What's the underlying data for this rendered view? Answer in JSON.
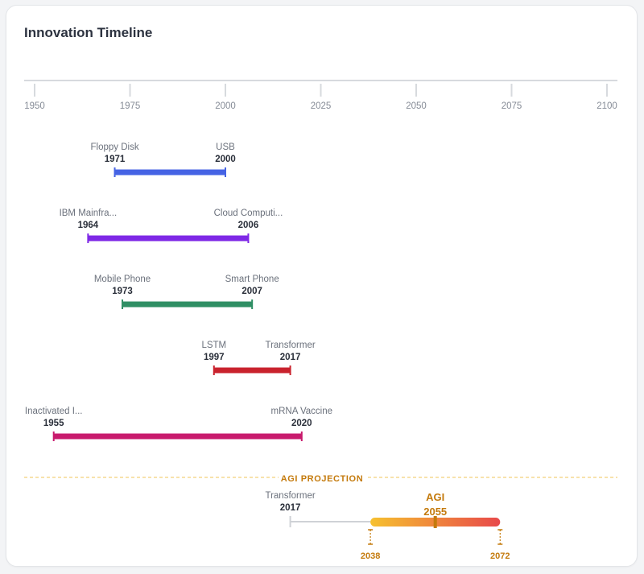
{
  "title": "Innovation Timeline",
  "chart_data": {
    "type": "timeline",
    "title": "Innovation Timeline",
    "xlim": [
      1950,
      2100
    ],
    "ticks": [
      1950,
      1975,
      2000,
      2025,
      2050,
      2075,
      2100
    ],
    "ranges": [
      {
        "start_label": "Floppy Disk",
        "start": 1971,
        "end_label": "USB",
        "end": 2000,
        "color": "#4563e4"
      },
      {
        "start_label": "IBM Mainfra...",
        "start": 1964,
        "end_label": "Cloud Computi...",
        "end": 2006,
        "color": "#7e28e6"
      },
      {
        "start_label": "Mobile Phone",
        "start": 1973,
        "end_label": "Smart Phone",
        "end": 2007,
        "color": "#2f8f64"
      },
      {
        "start_label": "LSTM",
        "start": 1997,
        "end_label": "Transformer",
        "end": 2017,
        "color": "#c9222d"
      },
      {
        "start_label": "Inactivated I...",
        "start": 1955,
        "end_label": "mRNA Vaccine",
        "end": 2020,
        "color": "#c81a6d"
      }
    ],
    "projection": {
      "label": "AGI PROJECTION",
      "anchor_label": "Transformer",
      "anchor_year": 2017,
      "name": "AGI",
      "estimate": 2055,
      "low": 2038,
      "high": 2072,
      "color_start": "#f6c12f",
      "color_end": "#e8494a",
      "accent": "#c47a0c"
    }
  }
}
